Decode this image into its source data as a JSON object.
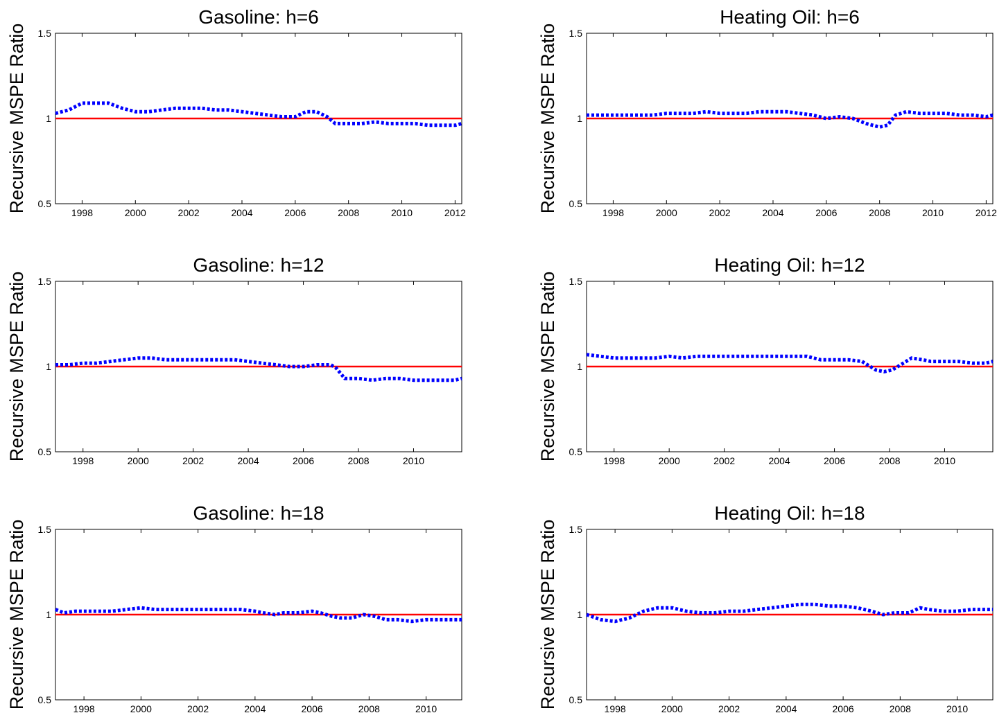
{
  "figure": {
    "colors": {
      "series": "#0000ff",
      "reference": "#ff0000",
      "axes": "#000000",
      "background": "#ffffff"
    }
  },
  "chart_data": [
    {
      "type": "line",
      "title": "Gasoline: h=6",
      "ylabel": "Recursive MSPE Ratio",
      "xlabel": "",
      "xlim": [
        1997.0,
        2012.25
      ],
      "ylim": [
        0.5,
        1.5
      ],
      "xticks": [
        1998,
        2000,
        2002,
        2004,
        2006,
        2008,
        2010,
        2012
      ],
      "yticks": [
        0.5,
        1,
        1.5
      ],
      "ytick_labels": [
        "0.5",
        "1",
        "1.5"
      ],
      "reference_line": 1.0,
      "grid": false,
      "series": [
        {
          "style": "dotted",
          "x": [
            1997.0,
            1997.5,
            1998.0,
            1998.5,
            1999.0,
            1999.5,
            2000.0,
            2000.5,
            2001.0,
            2001.5,
            2002.0,
            2002.5,
            2003.0,
            2003.5,
            2004.0,
            2004.5,
            2005.0,
            2005.5,
            2006.0,
            2006.4,
            2006.8,
            2007.2,
            2007.5,
            2008.0,
            2008.5,
            2009.0,
            2009.5,
            2010.0,
            2010.5,
            2011.0,
            2011.5,
            2012.0,
            2012.25
          ],
          "y": [
            1.03,
            1.05,
            1.09,
            1.09,
            1.09,
            1.06,
            1.04,
            1.04,
            1.05,
            1.06,
            1.06,
            1.06,
            1.05,
            1.05,
            1.04,
            1.03,
            1.02,
            1.01,
            1.01,
            1.04,
            1.04,
            1.01,
            0.97,
            0.97,
            0.97,
            0.98,
            0.97,
            0.97,
            0.97,
            0.96,
            0.96,
            0.96,
            0.97
          ]
        }
      ]
    },
    {
      "type": "line",
      "title": "Heating Oil: h=6",
      "ylabel": "Recursive MSPE Ratio",
      "xlabel": "",
      "xlim": [
        1997.0,
        2012.25
      ],
      "ylim": [
        0.5,
        1.5
      ],
      "xticks": [
        1998,
        2000,
        2002,
        2004,
        2006,
        2008,
        2010,
        2012
      ],
      "yticks": [
        0.5,
        1,
        1.5
      ],
      "ytick_labels": [
        "0.5",
        "1",
        "1.5"
      ],
      "reference_line": 1.0,
      "grid": false,
      "series": [
        {
          "style": "dotted",
          "x": [
            1997.0,
            1997.5,
            1998.0,
            1998.5,
            1999.0,
            1999.5,
            2000.0,
            2000.5,
            2001.0,
            2001.5,
            2002.0,
            2002.5,
            2003.0,
            2003.5,
            2004.0,
            2004.5,
            2005.0,
            2005.5,
            2006.0,
            2006.5,
            2007.0,
            2007.5,
            2008.0,
            2008.3,
            2008.6,
            2009.0,
            2009.5,
            2010.0,
            2010.5,
            2011.0,
            2011.5,
            2012.0,
            2012.25
          ],
          "y": [
            1.02,
            1.02,
            1.02,
            1.02,
            1.02,
            1.02,
            1.03,
            1.03,
            1.03,
            1.04,
            1.03,
            1.03,
            1.03,
            1.04,
            1.04,
            1.04,
            1.03,
            1.02,
            1.0,
            1.01,
            1.0,
            0.97,
            0.95,
            0.96,
            1.02,
            1.04,
            1.03,
            1.03,
            1.03,
            1.02,
            1.02,
            1.01,
            1.02
          ]
        }
      ]
    },
    {
      "type": "line",
      "title": "Gasoline: h=12",
      "ylabel": "Recursive MSPE Ratio",
      "xlabel": "",
      "xlim": [
        1997.0,
        2011.75
      ],
      "ylim": [
        0.5,
        1.5
      ],
      "xticks": [
        1998,
        2000,
        2002,
        2004,
        2006,
        2008,
        2010
      ],
      "yticks": [
        0.5,
        1,
        1.5
      ],
      "ytick_labels": [
        "0.5",
        "1",
        "1.5"
      ],
      "reference_line": 1.0,
      "grid": false,
      "series": [
        {
          "style": "dotted",
          "x": [
            1997.0,
            1997.5,
            1998.0,
            1998.5,
            1999.0,
            1999.5,
            2000.0,
            2000.5,
            2001.0,
            2001.5,
            2002.0,
            2002.5,
            2003.0,
            2003.5,
            2004.0,
            2004.5,
            2005.0,
            2005.5,
            2006.0,
            2006.5,
            2007.0,
            2007.2,
            2007.5,
            2008.0,
            2008.5,
            2009.0,
            2009.5,
            2010.0,
            2010.5,
            2011.0,
            2011.5,
            2011.75
          ],
          "y": [
            1.01,
            1.01,
            1.02,
            1.02,
            1.03,
            1.04,
            1.05,
            1.05,
            1.04,
            1.04,
            1.04,
            1.04,
            1.04,
            1.04,
            1.03,
            1.02,
            1.01,
            1.0,
            1.0,
            1.01,
            1.01,
            0.99,
            0.93,
            0.93,
            0.92,
            0.93,
            0.93,
            0.92,
            0.92,
            0.92,
            0.92,
            0.93
          ]
        }
      ]
    },
    {
      "type": "line",
      "title": "Heating Oil: h=12",
      "ylabel": "Recursive MSPE Ratio",
      "xlabel": "",
      "xlim": [
        1997.0,
        2011.75
      ],
      "ylim": [
        0.5,
        1.5
      ],
      "xticks": [
        1998,
        2000,
        2002,
        2004,
        2006,
        2008,
        2010
      ],
      "yticks": [
        0.5,
        1,
        1.5
      ],
      "ytick_labels": [
        "0.5",
        "1",
        "1.5"
      ],
      "reference_line": 1.0,
      "grid": false,
      "series": [
        {
          "style": "dotted",
          "x": [
            1997.0,
            1997.5,
            1998.0,
            1998.5,
            1999.0,
            1999.5,
            2000.0,
            2000.5,
            2001.0,
            2001.5,
            2002.0,
            2002.5,
            2003.0,
            2003.5,
            2004.0,
            2004.5,
            2005.0,
            2005.5,
            2006.0,
            2006.5,
            2007.0,
            2007.5,
            2007.8,
            2008.1,
            2008.5,
            2008.8,
            2009.2,
            2009.5,
            2010.0,
            2010.5,
            2011.0,
            2011.5,
            2011.75
          ],
          "y": [
            1.07,
            1.06,
            1.05,
            1.05,
            1.05,
            1.05,
            1.06,
            1.05,
            1.06,
            1.06,
            1.06,
            1.06,
            1.06,
            1.06,
            1.06,
            1.06,
            1.06,
            1.04,
            1.04,
            1.04,
            1.03,
            0.98,
            0.97,
            0.98,
            1.02,
            1.05,
            1.04,
            1.03,
            1.03,
            1.03,
            1.02,
            1.02,
            1.03
          ]
        }
      ]
    },
    {
      "type": "line",
      "title": "Gasoline: h=18",
      "ylabel": "Recursive MSPE Ratio",
      "xlabel": "",
      "xlim": [
        1997.0,
        2011.25
      ],
      "ylim": [
        0.5,
        1.5
      ],
      "xticks": [
        1998,
        2000,
        2002,
        2004,
        2006,
        2008,
        2010
      ],
      "yticks": [
        0.5,
        1,
        1.5
      ],
      "ytick_labels": [
        "0.5",
        "1",
        "1.5"
      ],
      "reference_line": 1.0,
      "grid": false,
      "series": [
        {
          "style": "dotted",
          "x": [
            1997.0,
            1997.3,
            1997.7,
            1998.2,
            1998.6,
            1999.0,
            1999.5,
            2000.0,
            2000.5,
            2001.0,
            2001.5,
            2002.0,
            2002.5,
            2003.0,
            2003.5,
            2004.0,
            2004.3,
            2004.7,
            2005.0,
            2005.5,
            2006.0,
            2006.3,
            2006.7,
            2007.0,
            2007.4,
            2007.8,
            2008.2,
            2008.6,
            2009.0,
            2009.5,
            2010.0,
            2010.5,
            2011.0,
            2011.25
          ],
          "y": [
            1.03,
            1.01,
            1.02,
            1.02,
            1.02,
            1.02,
            1.03,
            1.04,
            1.03,
            1.03,
            1.03,
            1.03,
            1.03,
            1.03,
            1.03,
            1.02,
            1.01,
            1.0,
            1.01,
            1.01,
            1.02,
            1.01,
            0.99,
            0.98,
            0.98,
            1.0,
            0.99,
            0.97,
            0.97,
            0.96,
            0.97,
            0.97,
            0.97,
            0.97
          ]
        }
      ]
    },
    {
      "type": "line",
      "title": "Heating Oil: h=18",
      "ylabel": "Recursive MSPE Ratio",
      "xlabel": "",
      "xlim": [
        1997.0,
        2011.25
      ],
      "ylim": [
        0.5,
        1.5
      ],
      "xticks": [
        1998,
        2000,
        2002,
        2004,
        2006,
        2008,
        2010
      ],
      "yticks": [
        0.5,
        1,
        1.5
      ],
      "ytick_labels": [
        "0.5",
        "1",
        "1.5"
      ],
      "reference_line": 1.0,
      "grid": false,
      "series": [
        {
          "style": "dotted",
          "x": [
            1997.0,
            1997.5,
            1998.0,
            1998.5,
            1999.0,
            1999.5,
            2000.0,
            2000.5,
            2001.0,
            2001.5,
            2002.0,
            2002.5,
            2003.0,
            2003.5,
            2004.0,
            2004.5,
            2005.0,
            2005.5,
            2006.0,
            2006.5,
            2007.0,
            2007.4,
            2007.8,
            2008.3,
            2008.7,
            2009.0,
            2009.5,
            2010.0,
            2010.5,
            2011.0,
            2011.25
          ],
          "y": [
            1.0,
            0.97,
            0.96,
            0.98,
            1.02,
            1.04,
            1.04,
            1.02,
            1.01,
            1.01,
            1.02,
            1.02,
            1.03,
            1.04,
            1.05,
            1.06,
            1.06,
            1.05,
            1.05,
            1.04,
            1.02,
            1.0,
            1.01,
            1.01,
            1.04,
            1.03,
            1.02,
            1.02,
            1.03,
            1.03,
            1.03
          ]
        }
      ]
    }
  ]
}
